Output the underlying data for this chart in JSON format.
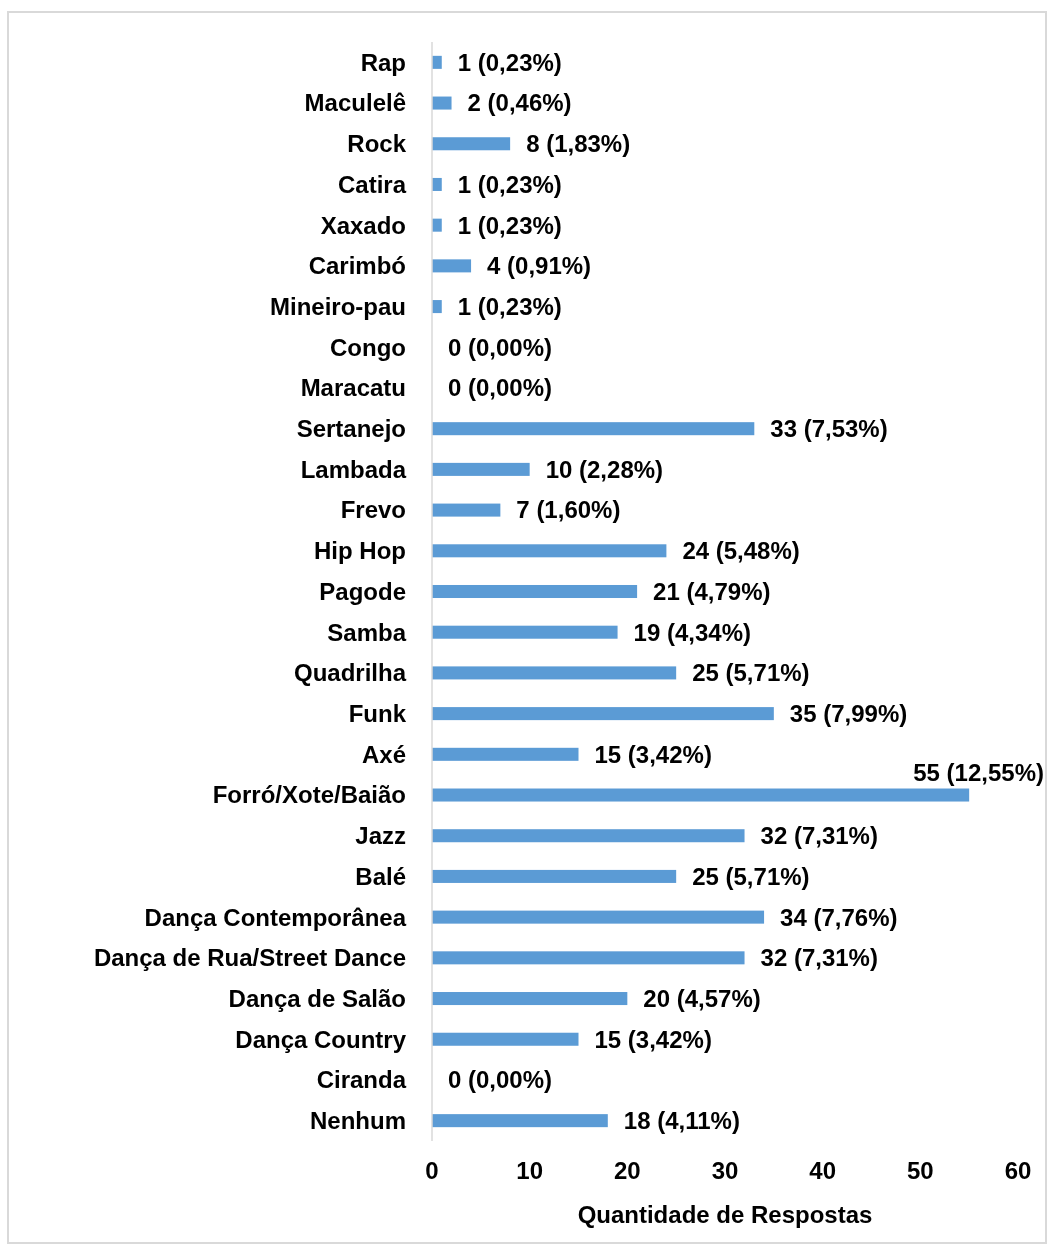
{
  "chart_data": {
    "type": "bar",
    "orientation": "horizontal",
    "xlabel": "Quantidade de Respostas",
    "categories": [
      "Rap",
      "Maculelê",
      "Rock",
      "Catira",
      "Xaxado",
      "Carimbó",
      "Mineiro-pau",
      "Congo",
      "Maracatu",
      "Sertanejo",
      "Lambada",
      "Frevo",
      "Hip Hop",
      "Pagode",
      "Samba",
      "Quadrilha",
      "Funk",
      "Axé",
      "Forró/Xote/Baião",
      "Jazz",
      "Balé",
      "Dança Contemporânea",
      "Dança de Rua/Street Dance",
      "Dança de Salão",
      "Dança Country",
      "Ciranda",
      "Nenhum"
    ],
    "values": [
      1,
      2,
      8,
      1,
      1,
      4,
      1,
      0,
      0,
      33,
      10,
      7,
      24,
      21,
      19,
      25,
      35,
      15,
      55,
      32,
      25,
      34,
      32,
      20,
      15,
      0,
      18
    ],
    "value_labels": [
      "1 (0,23%)",
      "2 (0,46%)",
      "8 (1,83%)",
      "1 (0,23%)",
      "1 (0,23%)",
      "4 (0,91%)",
      "1 (0,23%)",
      "0 (0,00%)",
      "0 (0,00%)",
      "33 (7,53%)",
      "10 (2,28%)",
      "7 (1,60%)",
      "24 (5,48%)",
      "21 (4,79%)",
      "19 (4,34%)",
      "25 (5,71%)",
      "35 (7,99%)",
      "15 (3,42%)",
      "55 (12,55%)",
      "32 (7,31%)",
      "25 (5,71%)",
      "34 (7,76%)",
      "32 (7,31%)",
      "20 (4,57%)",
      "15 (3,42%)",
      "0 (0,00%)",
      "18 (4,11%)"
    ],
    "color": "#5b9bd5",
    "xlim": [
      0,
      60
    ],
    "xticks": [
      0,
      10,
      20,
      30,
      40,
      50,
      60
    ],
    "grid": false
  }
}
